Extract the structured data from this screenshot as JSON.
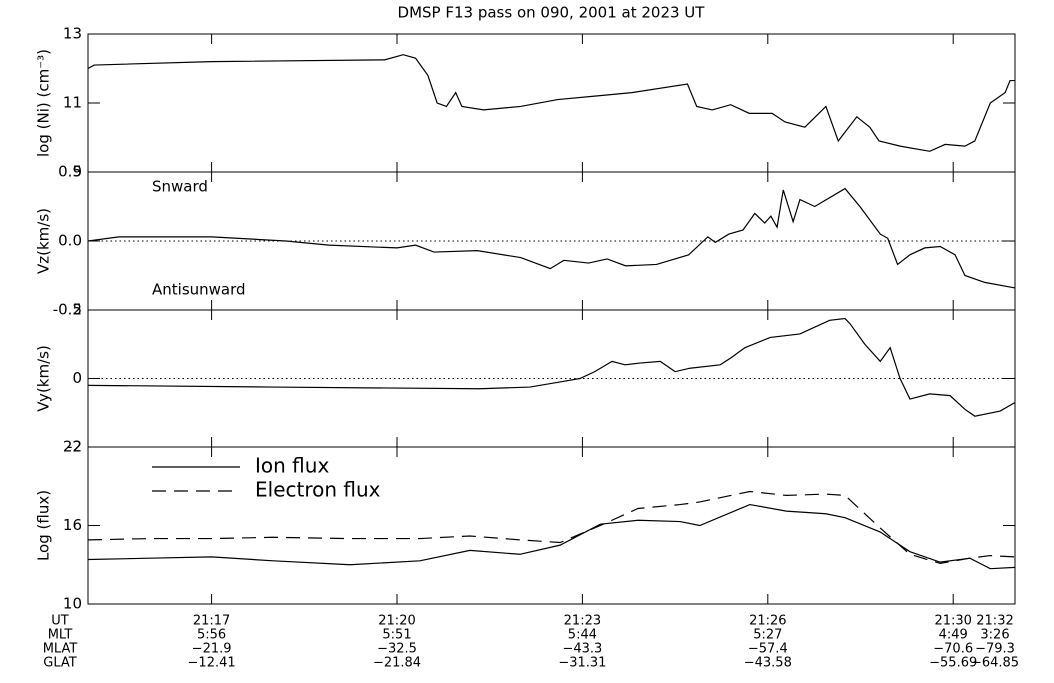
{
  "title": "DMSP F13 pass on 090, 2001 at 2023 UT",
  "xlim": [
    15,
    30
  ],
  "xticks": [
    {
      "value": 17,
      "label": "21:17"
    },
    {
      "value": 20,
      "label": "21:20"
    },
    {
      "value": 23,
      "label": "21:23"
    },
    {
      "value": 26,
      "label": "21:26"
    },
    {
      "value": 29,
      "label": "21:30"
    },
    {
      "value": 30,
      "label": "21:32"
    }
  ],
  "row_labels": [
    "UT",
    "MLT",
    "MLAT",
    "GLAT"
  ],
  "rows": [
    [
      "5:56",
      "5:51",
      "5:44",
      "5:27",
      "4:49",
      "3:26"
    ],
    [
      "−21.9",
      "−32.5",
      "−43.3",
      "−57.4",
      "−70.6",
      "−79.3"
    ],
    [
      "−12.41",
      "−21.84",
      "−31.31",
      "−43.58",
      "−55.69",
      "−64.85"
    ]
  ],
  "chart_data": [
    {
      "type": "line",
      "ylabel": "log (Ni) (cm⁻³)",
      "ylim": [
        9,
        13
      ],
      "yticks": [
        9,
        11,
        13
      ],
      "x": [
        15,
        15.1,
        17,
        19.8,
        20.1,
        20.3,
        20.5,
        20.65,
        20.8,
        20.95,
        21.05,
        21.4,
        22,
        22.6,
        23.2,
        23.8,
        24.7,
        24.85,
        25.1,
        25.4,
        25.7,
        26.07,
        26.28,
        26.6,
        26.94,
        27.14,
        27.44,
        27.65,
        27.8,
        28.14,
        28.62,
        28.87,
        29.19,
        29.35,
        29.6,
        29.84,
        29.92,
        30
      ],
      "series": [
        {
          "color": "#000000",
          "linestyle": "solid",
          "values": [
            12.0,
            12.1,
            12.2,
            12.25,
            12.4,
            12.3,
            11.8,
            11.0,
            10.9,
            11.3,
            10.9,
            10.8,
            10.9,
            11.1,
            11.2,
            11.3,
            11.55,
            10.9,
            10.8,
            10.95,
            10.7,
            10.7,
            10.45,
            10.3,
            10.9,
            9.9,
            10.6,
            10.3,
            9.9,
            9.75,
            9.6,
            9.8,
            9.75,
            9.9,
            11.0,
            11.3,
            11.65,
            11.65
          ]
        }
      ]
    },
    {
      "type": "line",
      "ylabel": "Vz(km/s)",
      "ylim": [
        -0.5,
        0.5
      ],
      "yticks": [
        -0.5,
        {
          "value": 0,
          "label": "0.0"
        },
        0.5
      ],
      "zero_line": true,
      "annotations": [
        {
          "text": "Snward",
          "position": "upper left"
        },
        {
          "text": "Antisunward",
          "position": "lower left"
        }
      ],
      "x": [
        15,
        15.5,
        17,
        18.2,
        18.9,
        20.0,
        20.3,
        20.6,
        21.3,
        22.0,
        22.48,
        22.7,
        23.1,
        23.4,
        23.7,
        24.2,
        24.72,
        25.03,
        25.15,
        25.37,
        25.6,
        25.79,
        25.95,
        26.05,
        26.15,
        26.25,
        26.41,
        26.52,
        26.76,
        27.25,
        27.49,
        27.82,
        27.94,
        28.1,
        28.3,
        28.54,
        28.79,
        29.03,
        29.19,
        29.51,
        30
      ],
      "series": [
        {
          "color": "#000000",
          "linestyle": "solid",
          "values": [
            0.0,
            0.03,
            0.03,
            0.0,
            -0.03,
            -0.05,
            -0.03,
            -0.08,
            -0.07,
            -0.12,
            -0.2,
            -0.14,
            -0.16,
            -0.13,
            -0.18,
            -0.17,
            -0.1,
            0.03,
            -0.01,
            0.05,
            0.08,
            0.2,
            0.13,
            0.18,
            0.1,
            0.37,
            0.14,
            0.3,
            0.25,
            0.38,
            0.25,
            0.05,
            0.02,
            -0.17,
            -0.1,
            -0.05,
            -0.04,
            -0.1,
            -0.25,
            -0.3,
            -0.34
          ]
        }
      ]
    },
    {
      "type": "line",
      "ylabel": "Vy(km/s)",
      "ylim": [
        -2,
        2
      ],
      "yticks": [
        -2,
        0,
        2
      ],
      "zero_line": true,
      "x": [
        15,
        18,
        21.34,
        22.15,
        22.64,
        22.96,
        23.2,
        23.48,
        23.69,
        23.93,
        24.26,
        24.5,
        24.74,
        25.23,
        25.4,
        25.63,
        26.04,
        26.52,
        27.0,
        27.25,
        27.33,
        27.57,
        27.82,
        27.98,
        28.14,
        28.3,
        28.62,
        28.95,
        29.19,
        29.35,
        29.76,
        30
      ],
      "series": [
        {
          "color": "#000000",
          "linestyle": "solid",
          "values": [
            -0.2,
            -0.25,
            -0.3,
            -0.25,
            -0.1,
            0.0,
            0.2,
            0.5,
            0.4,
            0.45,
            0.5,
            0.2,
            0.3,
            0.4,
            0.6,
            0.9,
            1.2,
            1.3,
            1.7,
            1.75,
            1.6,
            1.0,
            0.5,
            0.9,
            0.0,
            -0.6,
            -0.45,
            -0.5,
            -0.9,
            -1.1,
            -0.95,
            -0.7
          ]
        }
      ]
    },
    {
      "type": "line",
      "ylabel": "Log (flux)",
      "ylim": [
        10,
        22
      ],
      "yticks": [
        10,
        16,
        22
      ],
      "legend": "upper left",
      "x": [
        15,
        16,
        17,
        18,
        19.24,
        20.37,
        21.18,
        21.99,
        22.64,
        23.29,
        23.9,
        24.58,
        24.9,
        25.71,
        26.3,
        26.94,
        27.25,
        27.82,
        28.3,
        28.79,
        29.27,
        29.6,
        30
      ],
      "series": [
        {
          "name": "Ion flux",
          "color": "#000000",
          "linestyle": "solid",
          "values": [
            13.4,
            13.5,
            13.6,
            13.3,
            13.0,
            13.3,
            14.1,
            13.8,
            14.5,
            16.1,
            16.4,
            16.3,
            16.0,
            17.6,
            17.1,
            16.9,
            16.6,
            15.5,
            14.0,
            13.2,
            13.5,
            12.7,
            12.8
          ]
        },
        {
          "name": "Electron flux",
          "color": "#000000",
          "linestyle": "dashed",
          "values": [
            14.9,
            15.0,
            15.0,
            15.1,
            15.0,
            15.0,
            15.2,
            14.9,
            14.7,
            16.0,
            17.3,
            17.6,
            17.8,
            18.6,
            18.3,
            18.4,
            18.3,
            15.8,
            13.8,
            13.1,
            13.5,
            13.7,
            13.6
          ]
        }
      ]
    }
  ]
}
